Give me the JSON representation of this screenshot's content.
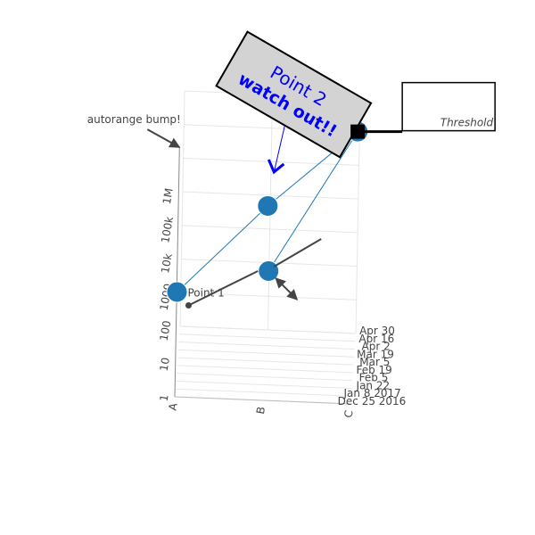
{
  "chart_data": {
    "type": "scatter",
    "dimensions": "3d",
    "x_axis": {
      "type": "category",
      "categories": [
        "A",
        "B",
        "C"
      ]
    },
    "y_axis": {
      "type": "date",
      "ticks": [
        "Dec 25 2016",
        "Jan 8 2017",
        "Jan 22",
        "Feb 5",
        "Feb 19",
        "Mar 5",
        "Mar 19",
        "Apr 2",
        "Apr 16",
        "Apr 30"
      ],
      "range": [
        "2016-12-25",
        "2017-04-30"
      ]
    },
    "z_axis": {
      "type": "log",
      "ticks": [
        "1",
        "10",
        "100",
        "1000",
        "10k",
        "100k",
        "1M"
      ],
      "range": [
        1,
        10000000
      ]
    },
    "series": [
      {
        "mode": "lines+markers",
        "color": "#1f77b4",
        "points": [
          {
            "x": "A",
            "y": "2017-01-01",
            "z": 1000
          },
          {
            "x": "B",
            "y": "2017-02-10",
            "z": 100000
          },
          {
            "x": "C",
            "y": "2017-03-01",
            "z": 10000000
          },
          {
            "x": "B",
            "y": "2017-04-15",
            "z": 100
          }
        ]
      }
    ],
    "annotations": [
      {
        "text": "autorange bump!",
        "x": "A",
        "y": "2017-01-01",
        "z": 10000000,
        "showarrow": true
      },
      {
        "text": "Point 1",
        "x": "A",
        "y": "2017-01-01",
        "z": 1000,
        "arrow_style": "dot-tail",
        "font_color": "#666666"
      },
      {
        "text": "Point 2",
        "line2": "watch out!!",
        "x": "B",
        "y": "2017-02-10",
        "z": 100000,
        "box_bgcolor": "#d3d3d3",
        "font_color": "#0000ff",
        "arrow_color": "#0000ff"
      },
      {
        "text": "Threshold",
        "x": "C",
        "y": "2017-03-01",
        "z": 10000000,
        "arrow_style": "square",
        "font_style": "italic"
      },
      {
        "text": "",
        "x": "B",
        "y": "2017-04-15",
        "z": 100,
        "arrow_style": "double-headed"
      }
    ]
  }
}
